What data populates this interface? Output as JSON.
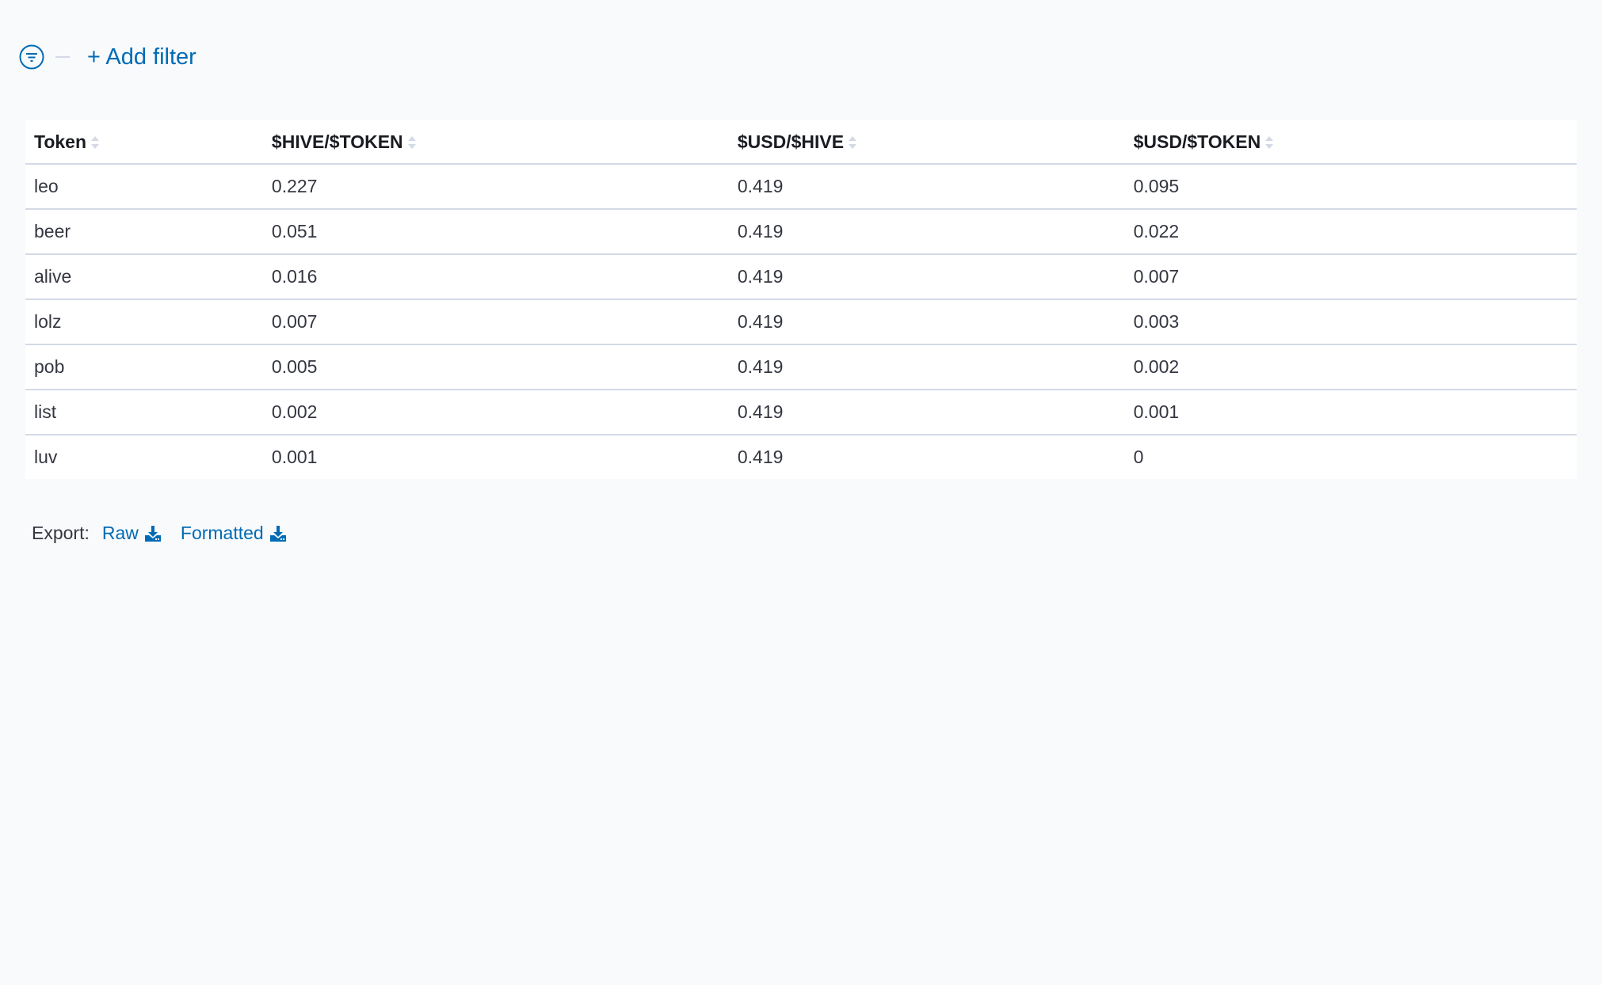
{
  "filter": {
    "add_label": "+ Add filter",
    "icon": "filter-icon"
  },
  "table": {
    "columns": [
      "Token",
      "$HIVE/$TOKEN",
      "$USD/$HIVE",
      "$USD/$TOKEN"
    ],
    "rows": [
      [
        "leo",
        "0.227",
        "0.419",
        "0.095"
      ],
      [
        "beer",
        "0.051",
        "0.419",
        "0.022"
      ],
      [
        "alive",
        "0.016",
        "0.419",
        "0.007"
      ],
      [
        "lolz",
        "0.007",
        "0.419",
        "0.003"
      ],
      [
        "pob",
        "0.005",
        "0.419",
        "0.002"
      ],
      [
        "list",
        "0.002",
        "0.419",
        "0.001"
      ],
      [
        "luv",
        "0.001",
        "0.419",
        "0"
      ]
    ]
  },
  "export": {
    "label": "Export:",
    "raw": "Raw",
    "formatted": "Formatted",
    "icon": "download-icon"
  },
  "colors": {
    "accent": "#006bb4",
    "border": "#d3dae6",
    "background": "#f9fafc"
  }
}
